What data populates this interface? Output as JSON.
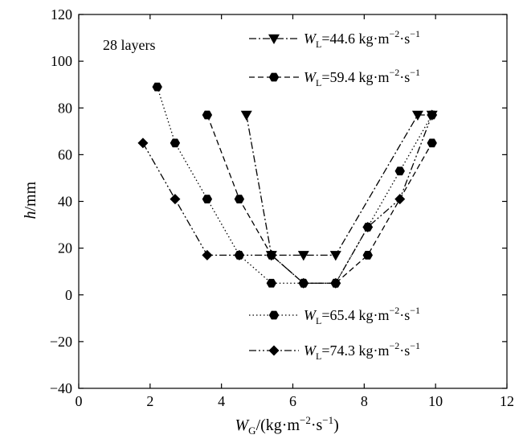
{
  "chart_data": {
    "type": "line",
    "title": "",
    "annotation": "28 layers",
    "xlabel": {
      "italic": "W",
      "sub": "G",
      "rest": "/(kg·m",
      "sup": "−2",
      "tail": "·s",
      "sup2": "−1",
      "end": ")"
    },
    "ylabel": {
      "italic": "h",
      "rest": "/mm"
    },
    "xlim": [
      0,
      12
    ],
    "ylim": [
      -40,
      120
    ],
    "xticks": [
      0,
      2,
      4,
      6,
      8,
      10,
      12
    ],
    "yticks": [
      -40,
      -20,
      0,
      20,
      40,
      60,
      80,
      100,
      120
    ],
    "xtick_labels": [
      "0",
      "2",
      "4",
      "6",
      "8",
      "10",
      "12"
    ],
    "ytick_labels": [
      "−40",
      "−20",
      "0",
      "20",
      "40",
      "60",
      "80",
      "100",
      "120"
    ],
    "grid": false,
    "series": [
      {
        "name": "W_L=44.6 kg·m−2·s−1",
        "label_value": "=44.6 kg·m",
        "marker": "triangle-down",
        "dash": "dashdot",
        "x": [
          4.7,
          5.4,
          6.3,
          7.2,
          9.5,
          9.9
        ],
        "y": [
          77,
          17,
          17,
          17,
          77,
          77
        ]
      },
      {
        "name": "W_L=59.4 kg·m−2·s−1",
        "label_value": "=59.4 kg·m",
        "marker": "hexagon",
        "dash": "dashed",
        "x": [
          3.6,
          4.5,
          5.4,
          6.3,
          7.2,
          8.1,
          9.9
        ],
        "y": [
          77,
          41,
          17,
          5,
          5,
          17,
          65
        ]
      },
      {
        "name": "W_L=65.4 kg·m−2·s−1",
        "label_value": "=65.4 kg·m",
        "marker": "hexagon",
        "dash": "dotted",
        "x": [
          2.2,
          2.7,
          3.6,
          4.5,
          5.4,
          6.3,
          7.2,
          8.1,
          9.0,
          9.9
        ],
        "y": [
          89,
          65,
          41,
          17,
          5,
          5,
          5,
          29,
          53,
          77
        ]
      },
      {
        "name": "W_L=74.3 kg·m−2·s−1",
        "label_value": "=74.3 kg·m",
        "marker": "diamond",
        "dash": "dashdotdot",
        "x": [
          1.8,
          2.7,
          3.6,
          4.5,
          5.4,
          6.3,
          7.2,
          8.1,
          9.0,
          9.9
        ],
        "y": [
          65,
          41,
          17,
          17,
          17,
          5,
          5,
          29,
          41,
          77
        ]
      }
    ],
    "legend_placement": "top-right and bottom-right"
  }
}
